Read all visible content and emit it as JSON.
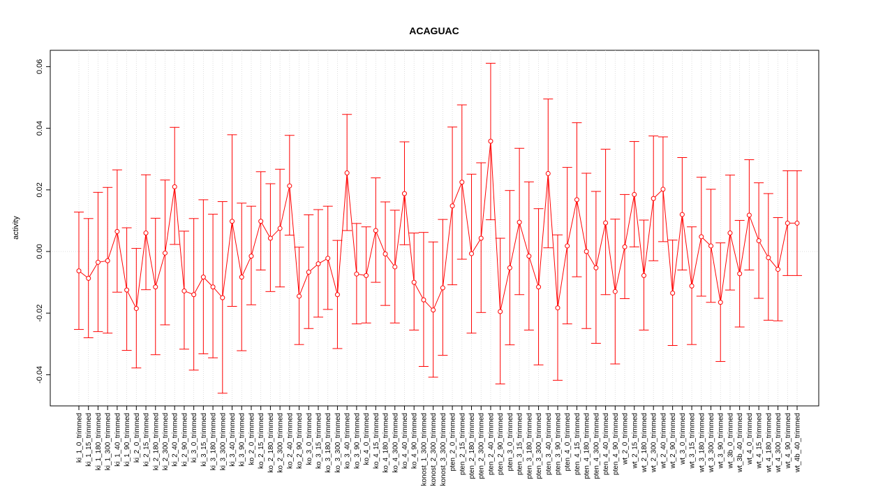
{
  "chart_data": {
    "type": "line",
    "title": "ACAGUAC",
    "xlabel": "",
    "ylabel": "activity",
    "ylim": [
      -0.05,
      0.065
    ],
    "yticks": [
      -0.04,
      -0.02,
      0.0,
      0.02,
      0.04,
      0.06
    ],
    "ytick_labels": [
      "-0.04",
      "-0.02",
      "0.00",
      "0.02",
      "0.04",
      "0.06"
    ],
    "grid": true,
    "series_color": "#ff0000",
    "grid_color": "#d3d3d3",
    "categories": [
      "ki_1_0_trimmed",
      "ki_1_15_trimmed",
      "ki_1_180_trimmed",
      "ki_1_300_trimmed",
      "ki_1_40_trimmed",
      "ki_1_90_trimmed",
      "ki_2_0_trimmed",
      "ki_2_15_trimmed",
      "ki_2_180_trimmed",
      "ki_2_300_trimmed",
      "ki_2_40_trimmed",
      "ki_2_90_trimmed",
      "ki_3_0_trimmed",
      "ki_3_15_trimmed",
      "ki_3_180_trimmed",
      "ki_3_300_trimmed",
      "ki_3_40_trimmed",
      "ki_3_90_trimmed",
      "ko_2_0_trimmed",
      "ko_2_15_trimmed",
      "ko_2_180_trimmed",
      "ko_2_300_trimmed",
      "ko_2_40_trimmed",
      "ko_2_90_trimmed",
      "ko_3_0_trimmed",
      "ko_3_15_trimmed",
      "ko_3_180_trimmed",
      "ko_3_300_trimmed",
      "ko_3_40_trimmed",
      "ko_3_90_trimmed",
      "ko_4_0_trimmed",
      "ko_4_15_trimmed",
      "ko_4_180_trimmed",
      "ko_4_300_trimmed",
      "ko_4_40_trimmed",
      "ko_4_90_trimmed",
      "konost_1_300_trimmed",
      "konost_2_300_trimmed",
      "konost_3_300_trimmed",
      "pten_2_0_trimmed",
      "pten_2_15_trimmed",
      "pten_2_180_trimmed",
      "pten_2_300_trimmed",
      "pten_2_40_trimmed",
      "pten_2_90_trimmed",
      "pten_3_0_trimmed",
      "pten_3_15_trimmed",
      "pten_3_180_trimmed",
      "pten_3_300_trimmed",
      "pten_3_40_trimmed",
      "pten_3_90_trimmed",
      "pten_4_0_trimmed",
      "pten_4_15_trimmed",
      "pten_4_180_trimmed",
      "pten_4_300_trimmed",
      "pten_4_40_trimmed",
      "pten_4_90_trimmed",
      "wt_2_0_trimmed",
      "wt_2_15_trimmed",
      "wt_2_180_trimmed",
      "wt_2_300_trimmed",
      "wt_2_40_trimmed",
      "wt_2_90_trimmed",
      "wt_3_0_trimmed",
      "wt_3_15_trimmed",
      "wt_3_180_trimmed",
      "wt_3_300_trimmed",
      "wt_3_90_trimmed",
      "wt_3b_0_trimmed",
      "wt_3b_40_trimmed",
      "wt_4_0_trimmed",
      "wt_4_15_trimmed",
      "wt_4_180_trimmed",
      "wt_4_300_trimmed",
      "wt_4_90_trimmed",
      "wt_4b_40_trimmed"
    ],
    "values": [
      -0.0063,
      -0.0087,
      -0.0035,
      -0.003,
      0.0065,
      -0.0125,
      -0.0185,
      0.006,
      -0.0115,
      -0.0005,
      0.021,
      -0.0128,
      -0.014,
      -0.0083,
      -0.0115,
      -0.015,
      0.0098,
      -0.0083,
      -0.0015,
      0.0098,
      0.0043,
      0.0075,
      0.0213,
      -0.0145,
      -0.0067,
      -0.004,
      -0.0022,
      -0.014,
      0.0255,
      -0.0073,
      -0.0078,
      0.0068,
      -0.0008,
      -0.005,
      0.0188,
      -0.01,
      -0.0157,
      -0.019,
      -0.0118,
      0.0148,
      0.0225,
      -0.0007,
      0.0043,
      0.0358,
      -0.0195,
      -0.0053,
      0.0095,
      -0.0015,
      -0.0115,
      0.0253,
      -0.0183,
      0.0018,
      0.0168,
      0.0,
      -0.0053,
      0.0093,
      -0.013,
      0.0015,
      0.0185,
      -0.0078,
      0.0172,
      0.0202,
      -0.0135,
      0.012,
      -0.0112,
      0.0048,
      0.0018,
      -0.0165,
      0.006,
      -0.0072,
      0.0118,
      0.0035,
      -0.002,
      -0.0058,
      0.0092,
      0.0092
    ],
    "upper": [
      0.0128,
      0.0107,
      0.0192,
      0.0208,
      0.0265,
      0.0077,
      0.001,
      0.0249,
      0.0108,
      0.0232,
      0.0403,
      0.0066,
      0.0107,
      0.0168,
      0.0121,
      0.0162,
      0.0379,
      0.0157,
      0.0147,
      0.0259,
      0.022,
      0.0267,
      0.0377,
      0.0014,
      0.0119,
      0.0136,
      0.0147,
      0.0036,
      0.0445,
      0.0091,
      0.008,
      0.0239,
      0.0161,
      0.0134,
      0.0356,
      0.006,
      0.0062,
      0.0031,
      0.0104,
      0.0404,
      0.0476,
      0.0251,
      0.0288,
      0.0611,
      0.0043,
      0.0198,
      0.0335,
      0.0226,
      0.0139,
      0.0495,
      0.0054,
      0.0273,
      0.0418,
      0.0254,
      0.0195,
      0.0332,
      0.0105,
      0.0185,
      0.0357,
      0.0102,
      0.0375,
      0.0372,
      0.0037,
      0.0305,
      0.008,
      0.0241,
      0.0202,
      0.0028,
      0.0248,
      0.0101,
      0.0298,
      0.0223,
      0.0188,
      0.011,
      0.0262,
      0.0262
    ],
    "lower": [
      -0.0253,
      -0.028,
      -0.026,
      -0.0265,
      -0.0132,
      -0.0321,
      -0.0378,
      -0.0124,
      -0.0335,
      -0.0238,
      0.0023,
      -0.0317,
      -0.0385,
      -0.0332,
      -0.0345,
      -0.046,
      -0.0178,
      -0.0322,
      -0.0173,
      -0.006,
      -0.013,
      -0.0115,
      0.0053,
      -0.0302,
      -0.025,
      -0.0213,
      -0.0188,
      -0.0315,
      0.0068,
      -0.0235,
      -0.0232,
      -0.01,
      -0.0175,
      -0.0232,
      0.0022,
      -0.0255,
      -0.0373,
      -0.0408,
      -0.0337,
      -0.0108,
      -0.0025,
      -0.0265,
      -0.0198,
      0.0103,
      -0.043,
      -0.0303,
      -0.014,
      -0.0255,
      -0.0368,
      0.0012,
      -0.0418,
      -0.0235,
      -0.0082,
      -0.025,
      -0.0298,
      -0.014,
      -0.0365,
      -0.0153,
      0.0015,
      -0.0255,
      -0.003,
      0.0032,
      -0.0305,
      -0.006,
      -0.0302,
      -0.0145,
      -0.0165,
      -0.0357,
      -0.0125,
      -0.0245,
      -0.006,
      -0.0152,
      -0.0223,
      -0.0225,
      -0.0078,
      -0.0078
    ]
  }
}
